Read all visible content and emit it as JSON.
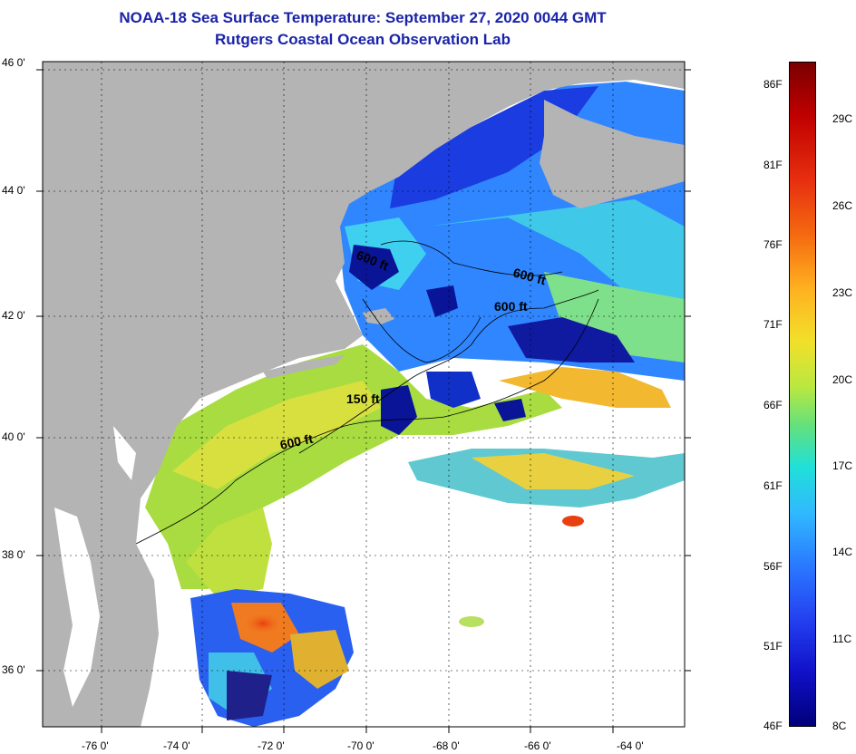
{
  "title": {
    "line1": "NOAA-18 Sea Surface Temperature:  September 27, 2020 0044 GMT",
    "line2": "Rutgers Coastal Ocean Observation Lab"
  },
  "axes": {
    "lat_labels": [
      "46 0'",
      "44 0'",
      "42 0'",
      "40 0'",
      "38 0'",
      "36 0'"
    ],
    "lon_labels": [
      "-76 0'",
      "-74 0'",
      "-72 0'",
      "-70 0'",
      "-68 0'",
      "-66 0'",
      "-64 0'"
    ]
  },
  "contours": {
    "labels": [
      "600 ft",
      "600 ft",
      "600 ft",
      "150 ft",
      "600 ft"
    ]
  },
  "colorbar": {
    "fahrenheit": [
      "86F",
      "81F",
      "76F",
      "71F",
      "66F",
      "61F",
      "56F",
      "51F",
      "46F"
    ],
    "celsius": [
      "29C",
      "26C",
      "23C",
      "20C",
      "17C",
      "14C",
      "11C",
      "8C"
    ]
  },
  "colors": {
    "title": "#1a23a8",
    "land": "#b4b4b4",
    "cloud": "#ffffff"
  }
}
